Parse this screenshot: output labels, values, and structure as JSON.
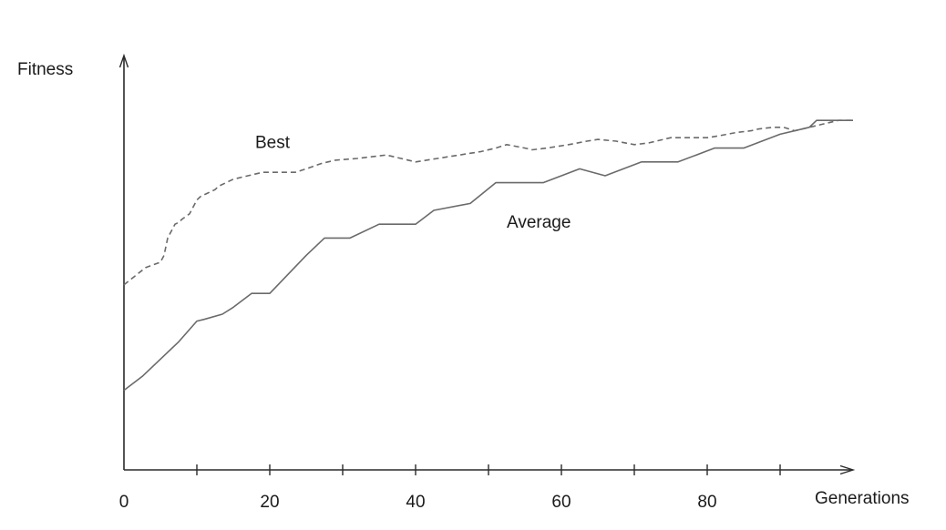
{
  "chart_data": {
    "type": "line",
    "title": "",
    "xlabel": "Generations",
    "ylabel": "Fitness",
    "xlim": [
      0,
      100
    ],
    "x_ticks": [
      0,
      20,
      40,
      60,
      80
    ],
    "grid": false,
    "series": [
      {
        "name": "Best",
        "style": "dashed",
        "color": "#6a6a6a",
        "points": [
          [
            0,
            63.5
          ],
          [
            1.5,
            66
          ],
          [
            3,
            68.5
          ],
          [
            5,
            70
          ],
          [
            5.5,
            72
          ],
          [
            6,
            77
          ],
          [
            7,
            81
          ],
          [
            7.5,
            81.5
          ],
          [
            8,
            82.5
          ],
          [
            9,
            84
          ],
          [
            10,
            88
          ],
          [
            10.5,
            89
          ],
          [
            11.5,
            90
          ],
          [
            12.5,
            91
          ],
          [
            13,
            92
          ],
          [
            14,
            93
          ],
          [
            15,
            94
          ],
          [
            17,
            95
          ],
          [
            19,
            96
          ],
          [
            21,
            96
          ],
          [
            23.5,
            96
          ],
          [
            25,
            97
          ],
          [
            27,
            98.5
          ],
          [
            29,
            99.5
          ],
          [
            32,
            100
          ],
          [
            34,
            100.5
          ],
          [
            36,
            101
          ],
          [
            38,
            100
          ],
          [
            40,
            99
          ],
          [
            43,
            100
          ],
          [
            46,
            101
          ],
          [
            49,
            102
          ],
          [
            51,
            103
          ],
          [
            52.5,
            104
          ],
          [
            55,
            103
          ],
          [
            56,
            102.5
          ],
          [
            58,
            103
          ],
          [
            61,
            104
          ],
          [
            63.5,
            105
          ],
          [
            65,
            105.5
          ],
          [
            67.5,
            105
          ],
          [
            70,
            104
          ],
          [
            72,
            104.5
          ],
          [
            74,
            105.5
          ],
          [
            75,
            106
          ],
          [
            78,
            106
          ],
          [
            80,
            106
          ],
          [
            81.5,
            106.5
          ],
          [
            84,
            107.5
          ],
          [
            86,
            108
          ],
          [
            87,
            108.5
          ],
          [
            89,
            109
          ],
          [
            90.5,
            109
          ],
          [
            92,
            108
          ],
          [
            94,
            109
          ],
          [
            96,
            110
          ],
          [
            98,
            111
          ],
          [
            100,
            111
          ]
        ]
      },
      {
        "name": "Average",
        "style": "solid",
        "color": "#6a6a6a",
        "points": [
          [
            0,
            33
          ],
          [
            2.5,
            37
          ],
          [
            5,
            42
          ],
          [
            7.5,
            47
          ],
          [
            10,
            53
          ],
          [
            11,
            53.5
          ],
          [
            13.5,
            55
          ],
          [
            15,
            57
          ],
          [
            17.5,
            61
          ],
          [
            20,
            61
          ],
          [
            22.5,
            66.5
          ],
          [
            25,
            72
          ],
          [
            27.5,
            77
          ],
          [
            31,
            77
          ],
          [
            35,
            81
          ],
          [
            40,
            81
          ],
          [
            42.5,
            85
          ],
          [
            47.5,
            87
          ],
          [
            51,
            93
          ],
          [
            57.5,
            93
          ],
          [
            62.5,
            97
          ],
          [
            66,
            95
          ],
          [
            71,
            99
          ],
          [
            76,
            99
          ],
          [
            81,
            103
          ],
          [
            85,
            103
          ],
          [
            87.5,
            105
          ],
          [
            90,
            107
          ],
          [
            94,
            109
          ],
          [
            95,
            111
          ],
          [
            100,
            111
          ]
        ]
      }
    ],
    "annotations": [
      {
        "text": "Best",
        "x": 18,
        "y": 103
      },
      {
        "text": "Average",
        "x": 52.5,
        "y": 80
      }
    ]
  }
}
